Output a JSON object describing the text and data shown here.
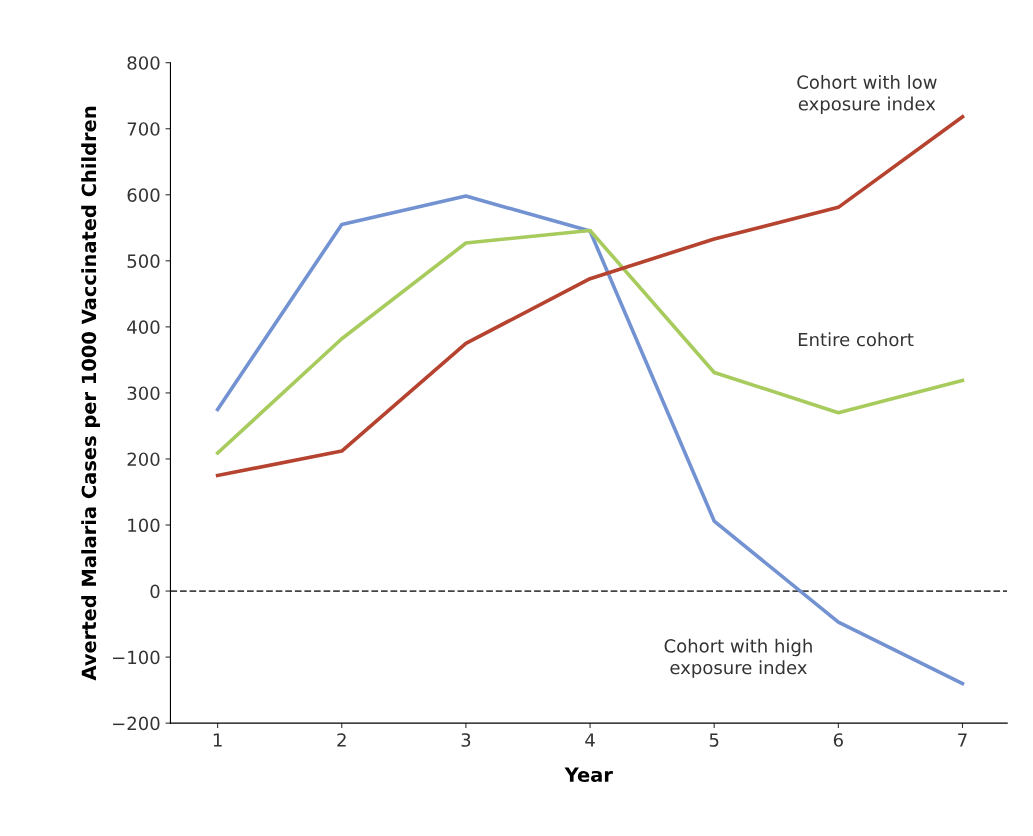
{
  "chart_data": {
    "type": "line",
    "xlabel": "Year",
    "ylabel": "Averted Malaria Cases per 1000 Vaccinated Children",
    "x": [
      1,
      2,
      3,
      4,
      5,
      6,
      7
    ],
    "series": [
      {
        "name": "Cohort with high\nexposure index",
        "color": "#7292d2",
        "values": [
          275,
          555,
          598,
          545,
          106,
          -47,
          -140
        ]
      },
      {
        "name": "Entire cohort",
        "color": "#a8cb5e",
        "values": [
          209,
          382,
          527,
          546,
          331,
          270,
          319
        ]
      },
      {
        "name": "Cohort with low\nexposure index",
        "color": "#b5432f",
        "values": [
          175,
          212,
          375,
          473,
          533,
          581,
          718
        ]
      }
    ],
    "xlim": [
      0.62,
      7.36
    ],
    "xticks": [
      1,
      2,
      3,
      4,
      5,
      6,
      7
    ],
    "ylim": [
      -200,
      800
    ],
    "yticks": [
      {
        "value": -200,
        "label": "−200"
      },
      {
        "value": -100,
        "label": "−100"
      },
      0,
      100,
      200,
      300,
      400,
      500,
      600,
      700,
      800
    ],
    "ref_lines": [
      {
        "axis": "y",
        "value": 0,
        "color": "#444444",
        "line_style": "dashed"
      }
    ],
    "grid": false,
    "legend": false,
    "marker": "none",
    "line_style": "solid"
  }
}
